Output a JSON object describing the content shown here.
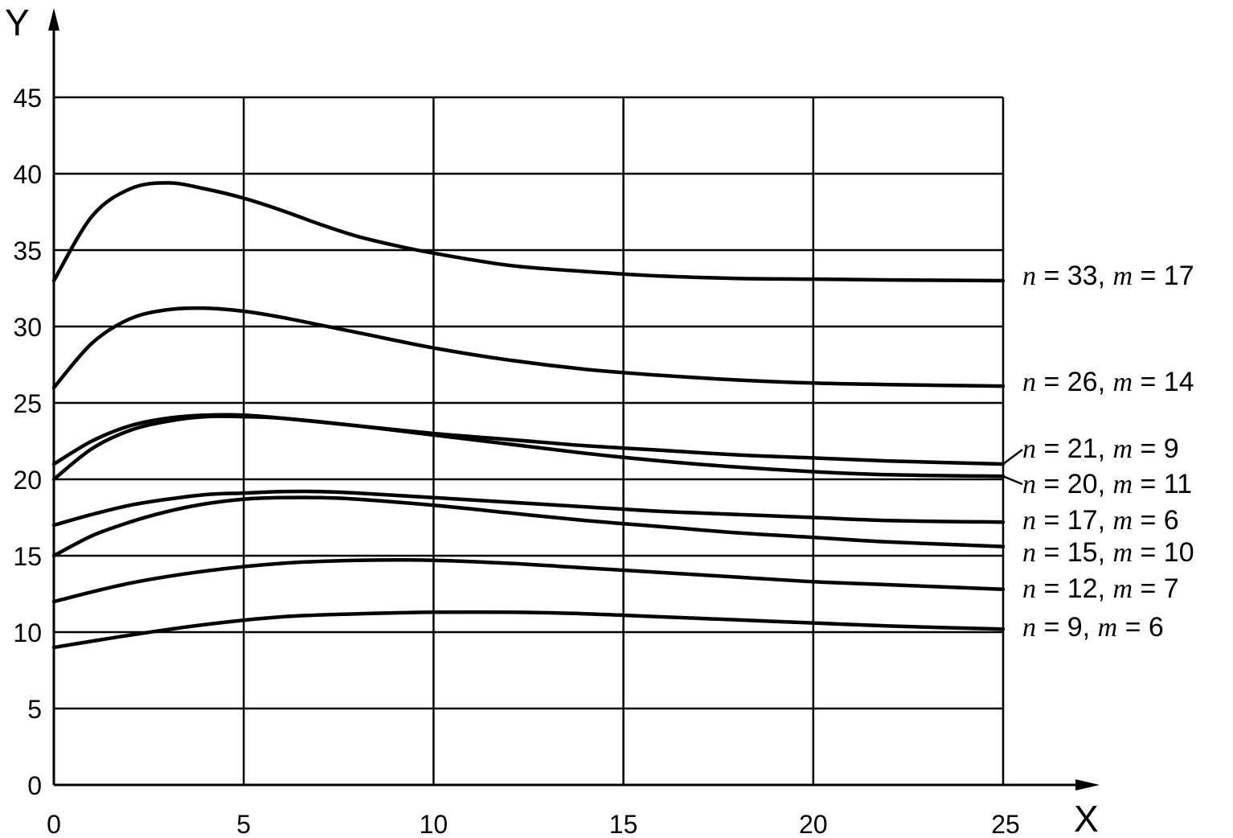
{
  "chart_data": {
    "type": "line",
    "title": "",
    "xlabel": "X",
    "ylabel": "Y",
    "xlim": [
      0,
      25
    ],
    "ylim": [
      0,
      45
    ],
    "xticks": [
      0,
      5,
      10,
      15,
      20,
      25
    ],
    "yticks": [
      0,
      5,
      10,
      15,
      20,
      25,
      30,
      35,
      40,
      45
    ],
    "grid": true,
    "legend": "inline labels at right end of each line",
    "series": [
      {
        "name": "n = 33, m = 17",
        "label_n": "33",
        "label_m": "17",
        "x": [
          0,
          1,
          2,
          3,
          4,
          5,
          6,
          7,
          8,
          9,
          10,
          12,
          14,
          16,
          18,
          20,
          22,
          25
        ],
        "y": [
          33,
          37.2,
          39.0,
          39.4,
          39.0,
          38.4,
          37.6,
          36.7,
          35.9,
          35.3,
          34.8,
          34.0,
          33.6,
          33.3,
          33.15,
          33.1,
          33.05,
          33
        ]
      },
      {
        "name": "n = 26, m = 14",
        "label_n": "26",
        "label_m": "14",
        "x": [
          0,
          1,
          2,
          3,
          4,
          5,
          6,
          8,
          10,
          12,
          14,
          16,
          18,
          20,
          22,
          25
        ],
        "y": [
          26,
          28.9,
          30.5,
          31.1,
          31.2,
          31.0,
          30.6,
          29.6,
          28.6,
          27.8,
          27.2,
          26.8,
          26.5,
          26.3,
          26.2,
          26.1
        ]
      },
      {
        "name": "n = 21, m = 9",
        "label_n": "21",
        "label_m": "9",
        "x": [
          0,
          1,
          2,
          3,
          4,
          5,
          6,
          8,
          10,
          12,
          14,
          16,
          18,
          20,
          22,
          25
        ],
        "y": [
          21,
          22.5,
          23.5,
          24.0,
          24.2,
          24.2,
          24.0,
          23.5,
          23.0,
          22.6,
          22.2,
          21.9,
          21.6,
          21.4,
          21.2,
          21.0
        ]
      },
      {
        "name": "n = 20, m = 11",
        "label_n": "20",
        "label_m": "11",
        "x": [
          0,
          1,
          2,
          3,
          4,
          5,
          6,
          8,
          10,
          12,
          14,
          16,
          18,
          20,
          22,
          25
        ],
        "y": [
          20,
          22.0,
          23.2,
          23.8,
          24.1,
          24.1,
          24.0,
          23.5,
          22.9,
          22.3,
          21.7,
          21.2,
          20.8,
          20.5,
          20.3,
          20.2
        ]
      },
      {
        "name": "n = 17, m = 6",
        "label_n": "17",
        "label_m": "6",
        "x": [
          0,
          1,
          2,
          3,
          4,
          5,
          6,
          7,
          8,
          10,
          12,
          14,
          16,
          18,
          20,
          22,
          25
        ],
        "y": [
          17,
          17.7,
          18.3,
          18.7,
          19.0,
          19.1,
          19.2,
          19.2,
          19.1,
          18.8,
          18.5,
          18.2,
          17.9,
          17.7,
          17.5,
          17.3,
          17.2
        ]
      },
      {
        "name": "n = 15, m = 10",
        "label_n": "15",
        "label_m": "10",
        "x": [
          0,
          1,
          2,
          3,
          4,
          5,
          6,
          7,
          8,
          10,
          12,
          14,
          16,
          18,
          20,
          22,
          25
        ],
        "y": [
          15,
          16.3,
          17.2,
          17.9,
          18.4,
          18.7,
          18.8,
          18.8,
          18.7,
          18.3,
          17.8,
          17.3,
          16.9,
          16.5,
          16.2,
          15.9,
          15.6
        ]
      },
      {
        "name": "n = 12, m = 7",
        "label_n": "12",
        "label_m": "7",
        "x": [
          0,
          2,
          4,
          6,
          8,
          10,
          12,
          14,
          16,
          18,
          20,
          22,
          25
        ],
        "y": [
          12,
          13.2,
          14.0,
          14.5,
          14.7,
          14.7,
          14.5,
          14.2,
          13.9,
          13.6,
          13.3,
          13.1,
          12.8
        ]
      },
      {
        "name": "n = 9, m = 6",
        "label_n": "9",
        "label_m": "6",
        "x": [
          0,
          2,
          4,
          6,
          8,
          10,
          12,
          14,
          16,
          18,
          20,
          22,
          25
        ],
        "y": [
          9,
          9.8,
          10.5,
          11.0,
          11.2,
          11.3,
          11.3,
          11.2,
          11.0,
          10.8,
          10.6,
          10.4,
          10.2
        ]
      }
    ]
  }
}
